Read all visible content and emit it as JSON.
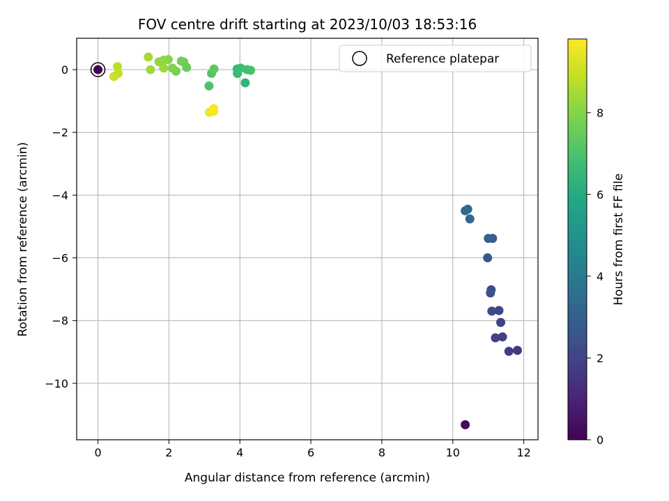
{
  "chart_data": {
    "type": "scatter",
    "title": "FOV centre drift starting at 2023/10/03 18:53:16",
    "xlabel": "Angular distance from reference (arcmin)",
    "ylabel": "Rotation from reference (arcmin)",
    "xlim": [
      -0.6,
      12.4
    ],
    "ylim": [
      -11.8,
      1.0
    ],
    "x_ticks": [
      0,
      2,
      4,
      6,
      8,
      10,
      12
    ],
    "x_tick_labels": [
      "0",
      "2",
      "4",
      "6",
      "8",
      "10",
      "12"
    ],
    "y_ticks": [
      0,
      -2,
      -4,
      -6,
      -8,
      -10
    ],
    "y_tick_labels": [
      "0",
      "−2",
      "−4",
      "−6",
      "−8",
      "−10"
    ],
    "grid": true,
    "legend": {
      "placement": "top-right",
      "entries": [
        {
          "label": "Reference platepar",
          "marker": "open-circle"
        }
      ]
    },
    "colorbar": {
      "label": "Hours from first FF file",
      "colormap": "viridis",
      "range": [
        0,
        9.8
      ],
      "ticks": [
        0,
        2,
        4,
        6,
        8
      ],
      "tick_labels": [
        "0",
        "2",
        "4",
        "6",
        "8"
      ]
    },
    "reference_point": {
      "x": 0,
      "y": 0
    },
    "points": [
      {
        "x": 0.0,
        "y": 0.0,
        "c": 0.0
      },
      {
        "x": 10.35,
        "y": -11.32,
        "c": 0.2
      },
      {
        "x": 11.82,
        "y": -8.95,
        "c": 1.6
      },
      {
        "x": 11.58,
        "y": -8.98,
        "c": 1.7
      },
      {
        "x": 11.4,
        "y": -8.52,
        "c": 1.8
      },
      {
        "x": 11.2,
        "y": -8.55,
        "c": 1.9
      },
      {
        "x": 11.35,
        "y": -8.06,
        "c": 2.0
      },
      {
        "x": 11.3,
        "y": -7.68,
        "c": 2.1
      },
      {
        "x": 11.1,
        "y": -7.7,
        "c": 2.2
      },
      {
        "x": 11.08,
        "y": -7.02,
        "c": 2.3
      },
      {
        "x": 11.06,
        "y": -7.12,
        "c": 2.4
      },
      {
        "x": 10.98,
        "y": -6.0,
        "c": 2.7
      },
      {
        "x": 11.12,
        "y": -5.38,
        "c": 2.9
      },
      {
        "x": 11.0,
        "y": -5.38,
        "c": 3.0
      },
      {
        "x": 10.48,
        "y": -4.76,
        "c": 3.2
      },
      {
        "x": 10.35,
        "y": -4.5,
        "c": 3.3
      },
      {
        "x": 10.42,
        "y": -4.45,
        "c": 3.4
      },
      {
        "x": 4.15,
        "y": -0.42,
        "c": 6.4
      },
      {
        "x": 3.93,
        "y": -0.12,
        "c": 6.5
      },
      {
        "x": 3.92,
        "y": 0.02,
        "c": 6.6
      },
      {
        "x": 4.02,
        "y": 0.05,
        "c": 6.7
      },
      {
        "x": 4.2,
        "y": 0.0,
        "c": 6.8
      },
      {
        "x": 4.3,
        "y": -0.02,
        "c": 6.9
      },
      {
        "x": 3.13,
        "y": -0.52,
        "c": 7.1
      },
      {
        "x": 3.2,
        "y": -0.12,
        "c": 7.2
      },
      {
        "x": 3.27,
        "y": 0.02,
        "c": 7.3
      },
      {
        "x": 2.5,
        "y": 0.07,
        "c": 7.5
      },
      {
        "x": 2.42,
        "y": 0.24,
        "c": 7.6
      },
      {
        "x": 2.35,
        "y": 0.27,
        "c": 7.7
      },
      {
        "x": 2.2,
        "y": -0.05,
        "c": 7.8
      },
      {
        "x": 2.1,
        "y": 0.05,
        "c": 7.9
      },
      {
        "x": 1.98,
        "y": 0.32,
        "c": 8.0
      },
      {
        "x": 1.85,
        "y": 0.3,
        "c": 8.1
      },
      {
        "x": 1.72,
        "y": 0.25,
        "c": 8.2
      },
      {
        "x": 1.85,
        "y": 0.05,
        "c": 8.3
      },
      {
        "x": 1.48,
        "y": 0.0,
        "c": 8.4
      },
      {
        "x": 1.42,
        "y": 0.4,
        "c": 8.5
      },
      {
        "x": 0.55,
        "y": 0.1,
        "c": 8.8
      },
      {
        "x": 0.57,
        "y": -0.12,
        "c": 8.9
      },
      {
        "x": 0.45,
        "y": -0.22,
        "c": 9.0
      },
      {
        "x": 3.14,
        "y": -1.36,
        "c": 9.6
      },
      {
        "x": 3.26,
        "y": -1.33,
        "c": 9.7
      },
      {
        "x": 3.26,
        "y": -1.24,
        "c": 9.8
      }
    ]
  }
}
